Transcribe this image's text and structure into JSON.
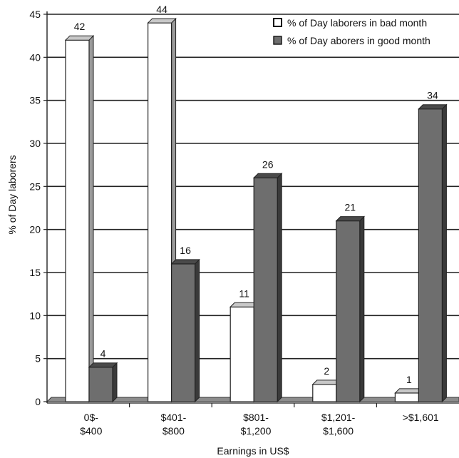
{
  "chart_data": {
    "type": "bar",
    "categories": [
      "0$-\n$400",
      "$401-\n$800",
      "$801-\n$1,200",
      "$1,201-\n$1,600",
      ">$1,601"
    ],
    "series": [
      {
        "name": "% of Day laborers in bad month",
        "values": [
          42,
          44,
          11,
          2,
          1
        ],
        "color": "#ffffff"
      },
      {
        "name": "% of Day aborers in good month",
        "values": [
          4,
          16,
          26,
          21,
          34
        ],
        "color": "#6e6e6e"
      }
    ],
    "data_labels": [
      [
        "42",
        "44",
        "11",
        "2",
        "1"
      ],
      [
        "4",
        "16",
        "26",
        "21",
        "34"
      ]
    ],
    "xlabel": "Earnings in US$",
    "ylabel": "% of Day laborers",
    "ylim": [
      0,
      45
    ],
    "yticks": [
      0,
      5,
      10,
      15,
      20,
      25,
      30,
      35,
      40,
      45
    ],
    "grid": true,
    "legend_position": "top-right",
    "style": "3d-bar"
  }
}
